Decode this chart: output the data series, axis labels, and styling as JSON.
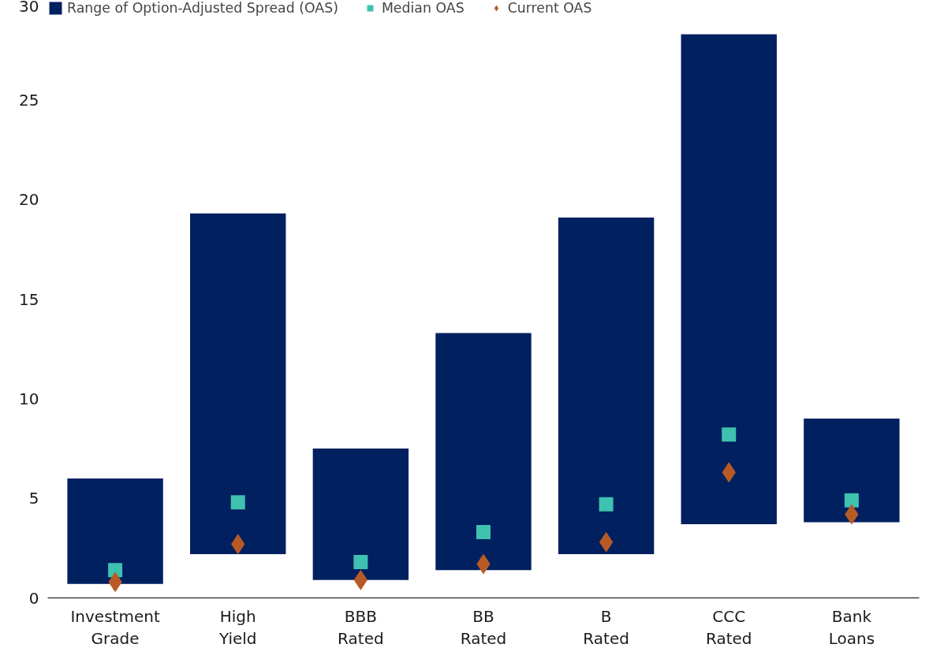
{
  "chart_data": {
    "type": "box",
    "categories": [
      "Investment\nGrade",
      "High\nYield",
      "BBB\nRated",
      "BB\nRated",
      "B\nRated",
      "CCC\nRated",
      "Bank\nLoans"
    ],
    "series": [
      {
        "name": "Range of Option-Adjusted Spread (OAS)",
        "color": "#002060",
        "boxes": [
          {
            "low": 0.7,
            "q1": 0.7,
            "q3": 6.0,
            "high": 6.0
          },
          {
            "low": 2.2,
            "q1": 2.2,
            "q3": 19.3,
            "high": 19.3
          },
          {
            "low": 0.9,
            "q1": 0.9,
            "q3": 7.5,
            "high": 7.5
          },
          {
            "low": 1.4,
            "q1": 1.4,
            "q3": 13.3,
            "high": 13.3
          },
          {
            "low": 2.2,
            "q1": 2.2,
            "q3": 19.1,
            "high": 19.1
          },
          {
            "low": 3.7,
            "q1": 3.7,
            "q3": 28.3,
            "high": 28.3
          },
          {
            "low": 3.8,
            "q1": 3.8,
            "q3": 9.0,
            "high": 9.0
          }
        ]
      },
      {
        "name": "Median OAS",
        "type": "scatter",
        "marker": "square",
        "color": "#3fc1b0",
        "values": [
          1.4,
          4.8,
          1.8,
          3.3,
          4.7,
          8.2,
          4.9
        ]
      },
      {
        "name": "Current OAS",
        "type": "scatter",
        "marker": "diamond",
        "color": "#b85a26",
        "values": [
          0.8,
          2.7,
          0.9,
          1.7,
          2.8,
          6.3,
          4.2
        ]
      }
    ],
    "ylim": [
      0,
      30
    ],
    "yticks": [
      0,
      5,
      10,
      15,
      20,
      25,
      30
    ],
    "grid": false,
    "legend": "top left"
  }
}
